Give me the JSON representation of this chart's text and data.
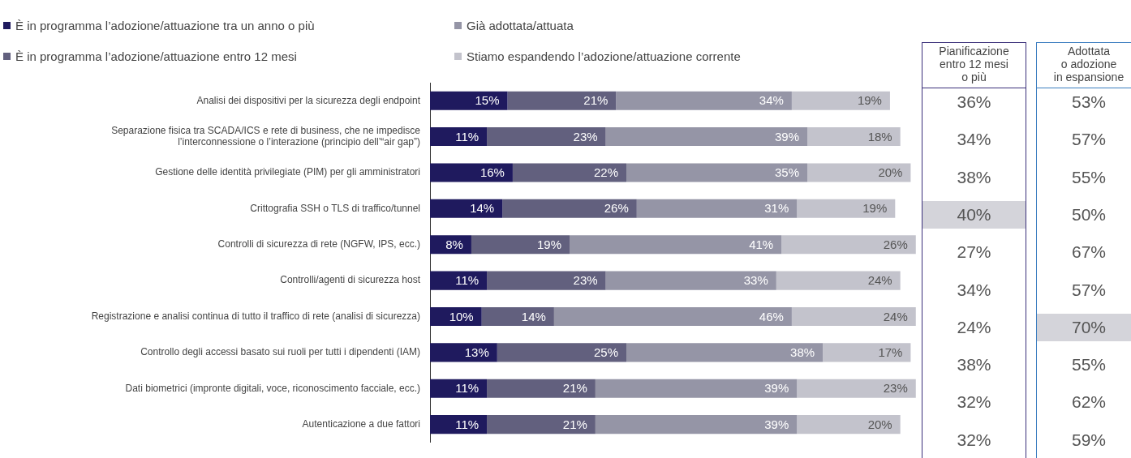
{
  "chart_data": [
    {
      "type": "bar",
      "orientation": "horizontal",
      "stacked": true,
      "legend": "top left",
      "tick_labels": "y",
      "categories": [
        "Analisi dei dispositivi per la sicurezza degli endpoint",
        "Separazione fisica tra SCADA/ICS e rete di business, che ne impedisce\nl’interconnessione o l’interazione (principio dell’“air gap”)",
        "Gestione delle identità privilegiate (PIM) per gli amministratori",
        "Crittografia SSH o TLS di traffico/tunnel",
        "Controlli di sicurezza di rete (NGFW, IPS, ecc.)",
        "Controlli/agenti di sicurezza host",
        "Registrazione e analisi continua di tutto il traffico di rete (analisi di sicurezza)",
        "Controllo degli accessi basato sui ruoli per tutti i dipendenti (IAM)",
        "Dati biometrici (impronte digitali, voce, riconoscimento facciale, ecc.)",
        "Autenticazione a due fattori"
      ],
      "series": [
        {
          "name": "È in programma l’adozione/attuazione tra un anno o più",
          "color": "#1f1a5e",
          "values": [
            15,
            11,
            16,
            14,
            8,
            11,
            10,
            13,
            11,
            11
          ],
          "value_labels": [
            "15%",
            "11%",
            "16%",
            "14%",
            "8%",
            "11%",
            "10%",
            "13%",
            "11%",
            "11%"
          ]
        },
        {
          "name": "È in programma l’adozione/attuazione entro 12 mesi",
          "color": "#62607e",
          "values": [
            21,
            23,
            22,
            26,
            19,
            23,
            14,
            25,
            21,
            21
          ],
          "value_labels": [
            "21%",
            "23%",
            "22%",
            "26%",
            "19%",
            "23%",
            "14%",
            "25%",
            "21%",
            "21%"
          ]
        },
        {
          "name": "Già adottata/attuata",
          "color": "#9595a6",
          "values": [
            34,
            39,
            35,
            31,
            41,
            33,
            46,
            38,
            39,
            39
          ],
          "value_labels": [
            "34%",
            "39%",
            "35%",
            "31%",
            "41%",
            "33%",
            "46%",
            "38%",
            "39%",
            "39%"
          ]
        },
        {
          "name": "Stiamo espandendo l’adozione/attuazione corrente",
          "color": "#c3c3cc",
          "values": [
            19,
            18,
            20,
            19,
            26,
            24,
            24,
            17,
            23,
            20
          ],
          "value_labels": [
            "19%",
            "18%",
            "20%",
            "19%",
            "26%",
            "24%",
            "24%",
            "17%",
            "23%",
            "20%"
          ]
        }
      ]
    },
    {
      "type": "other",
      "title": "Pianificazione\nentro 12 mesi\no più",
      "annotations": [
        "36%",
        "34%",
        "38%",
        "40%",
        "27%",
        "34%",
        "24%",
        "38%",
        "32%",
        "32%"
      ],
      "colors": [
        "#ffffff",
        "#ffffff",
        "#ffffff",
        "#d4d4da",
        "#ffffff",
        "#ffffff",
        "#ffffff",
        "#ffffff",
        "#ffffff",
        "#ffffff"
      ]
    },
    {
      "type": "other",
      "title": "Adottata\no adozione\nin espansione",
      "annotations": [
        "53%",
        "57%",
        "55%",
        "50%",
        "67%",
        "57%",
        "70%",
        "55%",
        "62%",
        "59%"
      ],
      "colors": [
        "#ffffff",
        "#ffffff",
        "#ffffff",
        "#ffffff",
        "#ffffff",
        "#ffffff",
        "#d4d4da",
        "#ffffff",
        "#ffffff",
        "#ffffff"
      ]
    }
  ]
}
